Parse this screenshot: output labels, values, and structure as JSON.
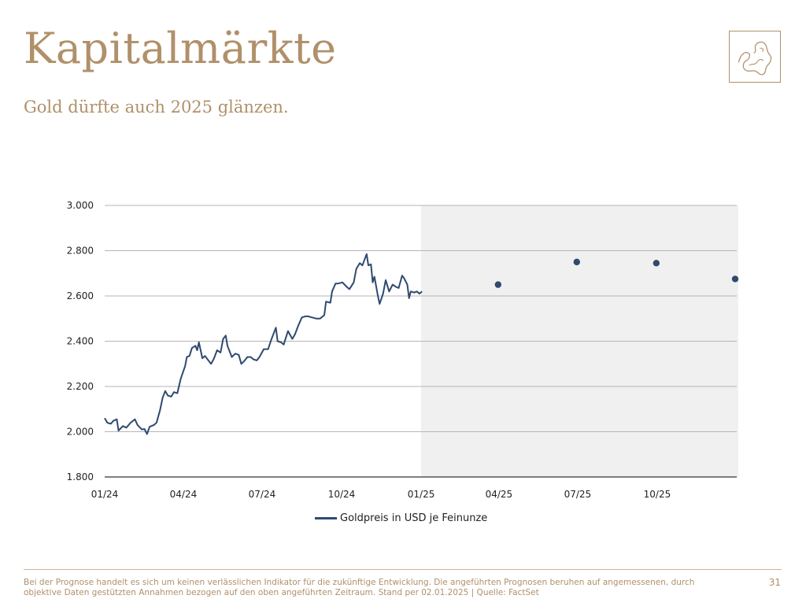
{
  "header": {
    "title": "Kapitalmärkte",
    "subtitle": "Gold dürfte auch 2025 glänzen."
  },
  "logo": {
    "icon": "map-icon",
    "color": "#b0906a"
  },
  "footer": {
    "disclaimer": "Bei der Prognose handelt es sich um keinen verlässlichen Indikator für die zukünftige Entwicklung. Die angeführten Prognosen beruhen auf angemessenen, durch objektive Daten gestützten Annahmen bezogen auf den oben angeführten Zeitraum. Stand per 02.01.2025 | Quelle: FactSet",
    "page_number": "31"
  },
  "chart_data": {
    "type": "line",
    "title": "",
    "xlabel": "",
    "ylabel": "",
    "ylim": [
      1800,
      3000
    ],
    "xlim": [
      "2024-01-01",
      "2026-01-01"
    ],
    "y_ticks": [
      "1.800",
      "2.000",
      "2.200",
      "2.400",
      "2.600",
      "2.800",
      "3.000"
    ],
    "y_tick_values": [
      1800,
      2000,
      2200,
      2400,
      2600,
      2800,
      3000
    ],
    "x_ticks": [
      "01/24",
      "04/24",
      "07/24",
      "10/24",
      "01/25",
      "04/25",
      "07/25",
      "10/25"
    ],
    "x_tick_dates": [
      "2024-01-01",
      "2024-04-01",
      "2024-07-01",
      "2024-10-01",
      "2025-01-01",
      "2025-04-01",
      "2025-07-01",
      "2025-10-01"
    ],
    "grid": "horizontal",
    "forecast_region": {
      "from": "2025-01-01",
      "to": "2026-01-01",
      "color": "#f0f0f0"
    },
    "legend_position": "bottom",
    "series": [
      {
        "name": "Goldpreis in USD je Feinunze",
        "style": "line",
        "color": "#2f4a6e",
        "points": [
          [
            "2024-01-01",
            2060
          ],
          [
            "2024-01-04",
            2040
          ],
          [
            "2024-01-08",
            2035
          ],
          [
            "2024-01-11",
            2048
          ],
          [
            "2024-01-15",
            2055
          ],
          [
            "2024-01-17",
            2005
          ],
          [
            "2024-01-22",
            2025
          ],
          [
            "2024-01-26",
            2018
          ],
          [
            "2024-01-31",
            2040
          ],
          [
            "2024-02-05",
            2055
          ],
          [
            "2024-02-08",
            2030
          ],
          [
            "2024-02-13",
            2010
          ],
          [
            "2024-02-16",
            2012
          ],
          [
            "2024-02-19",
            1990
          ],
          [
            "2024-02-22",
            2022
          ],
          [
            "2024-02-27",
            2030
          ],
          [
            "2024-03-01",
            2040
          ],
          [
            "2024-03-05",
            2095
          ],
          [
            "2024-03-08",
            2150
          ],
          [
            "2024-03-11",
            2180
          ],
          [
            "2024-03-14",
            2160
          ],
          [
            "2024-03-18",
            2155
          ],
          [
            "2024-03-21",
            2175
          ],
          [
            "2024-03-25",
            2170
          ],
          [
            "2024-03-29",
            2235
          ],
          [
            "2024-04-03",
            2290
          ],
          [
            "2024-04-05",
            2330
          ],
          [
            "2024-04-08",
            2335
          ],
          [
            "2024-04-11",
            2370
          ],
          [
            "2024-04-15",
            2380
          ],
          [
            "2024-04-17",
            2360
          ],
          [
            "2024-04-19",
            2395
          ],
          [
            "2024-04-23",
            2325
          ],
          [
            "2024-04-26",
            2335
          ],
          [
            "2024-05-01",
            2310
          ],
          [
            "2024-05-03",
            2300
          ],
          [
            "2024-05-06",
            2320
          ],
          [
            "2024-05-10",
            2360
          ],
          [
            "2024-05-14",
            2350
          ],
          [
            "2024-05-17",
            2410
          ],
          [
            "2024-05-20",
            2425
          ],
          [
            "2024-05-22",
            2380
          ],
          [
            "2024-05-27",
            2330
          ],
          [
            "2024-05-31",
            2345
          ],
          [
            "2024-06-04",
            2340
          ],
          [
            "2024-06-07",
            2300
          ],
          [
            "2024-06-11",
            2315
          ],
          [
            "2024-06-14",
            2330
          ],
          [
            "2024-06-18",
            2330
          ],
          [
            "2024-06-21",
            2320
          ],
          [
            "2024-06-25",
            2315
          ],
          [
            "2024-06-28",
            2330
          ],
          [
            "2024-07-03",
            2365
          ],
          [
            "2024-07-08",
            2365
          ],
          [
            "2024-07-12",
            2410
          ],
          [
            "2024-07-17",
            2460
          ],
          [
            "2024-07-19",
            2400
          ],
          [
            "2024-07-23",
            2395
          ],
          [
            "2024-07-26",
            2385
          ],
          [
            "2024-07-31",
            2445
          ],
          [
            "2024-08-05",
            2410
          ],
          [
            "2024-08-08",
            2430
          ],
          [
            "2024-08-12",
            2470
          ],
          [
            "2024-08-16",
            2505
          ],
          [
            "2024-08-20",
            2510
          ],
          [
            "2024-08-23",
            2510
          ],
          [
            "2024-08-28",
            2505
          ],
          [
            "2024-09-02",
            2500
          ],
          [
            "2024-09-06",
            2500
          ],
          [
            "2024-09-11",
            2515
          ],
          [
            "2024-09-13",
            2575
          ],
          [
            "2024-09-18",
            2570
          ],
          [
            "2024-09-20",
            2620
          ],
          [
            "2024-09-24",
            2655
          ],
          [
            "2024-09-27",
            2655
          ],
          [
            "2024-10-02",
            2660
          ],
          [
            "2024-10-07",
            2640
          ],
          [
            "2024-10-10",
            2630
          ],
          [
            "2024-10-15",
            2660
          ],
          [
            "2024-10-18",
            2720
          ],
          [
            "2024-10-22",
            2745
          ],
          [
            "2024-10-25",
            2735
          ],
          [
            "2024-10-30",
            2785
          ],
          [
            "2024-11-01",
            2735
          ],
          [
            "2024-11-04",
            2740
          ],
          [
            "2024-11-06",
            2660
          ],
          [
            "2024-11-08",
            2685
          ],
          [
            "2024-11-12",
            2600
          ],
          [
            "2024-11-14",
            2565
          ],
          [
            "2024-11-18",
            2610
          ],
          [
            "2024-11-21",
            2670
          ],
          [
            "2024-11-25",
            2620
          ],
          [
            "2024-11-29",
            2650
          ],
          [
            "2024-12-03",
            2640
          ],
          [
            "2024-12-06",
            2635
          ],
          [
            "2024-12-10",
            2690
          ],
          [
            "2024-12-12",
            2680
          ],
          [
            "2024-12-16",
            2650
          ],
          [
            "2024-12-18",
            2590
          ],
          [
            "2024-12-20",
            2620
          ],
          [
            "2024-12-24",
            2615
          ],
          [
            "2024-12-27",
            2620
          ],
          [
            "2024-12-30",
            2610
          ],
          [
            "2025-01-02",
            2620
          ]
        ]
      },
      {
        "name": "",
        "style": "points",
        "color": "#2f4a6e",
        "points": [
          [
            "2025-03-31",
            2650
          ],
          [
            "2025-06-30",
            2750
          ],
          [
            "2025-09-30",
            2745
          ],
          [
            "2025-12-31",
            2675
          ]
        ]
      }
    ]
  }
}
